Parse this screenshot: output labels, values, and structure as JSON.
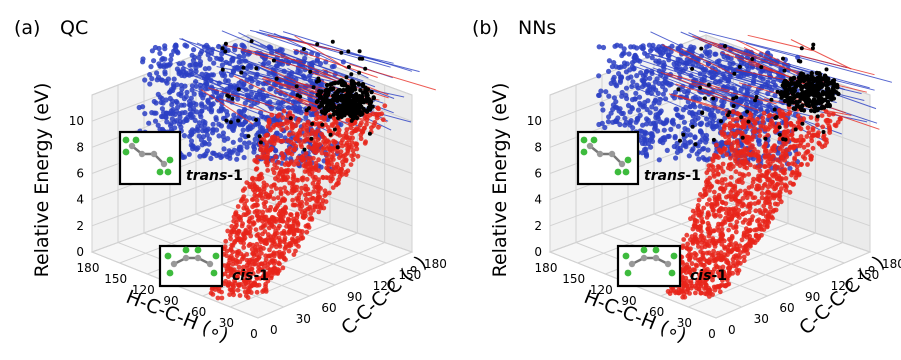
{
  "chart_data": [
    {
      "type": "scatter",
      "panel_label": "(a)",
      "title": "QC",
      "zlabel": "Relative Energy (eV)",
      "xlabel": "H-C-C-H (∘)",
      "ylabel": "C-C-C-C (∘)",
      "z_ticks": [
        "0",
        "2",
        "4",
        "6",
        "8",
        "10"
      ],
      "x_ticks": [
        "180",
        "150",
        "120",
        "90",
        "60",
        "30",
        "0"
      ],
      "y_ticks": [
        "0",
        "30",
        "60",
        "90",
        "120",
        "150",
        "180"
      ],
      "zlim": [
        0,
        12
      ],
      "xlim": [
        0,
        180
      ],
      "ylim": [
        0,
        180
      ],
      "series_colors": [
        "#2b3fc4",
        "#e8241a",
        "#000000"
      ],
      "annotations": [
        {
          "text": "trans-1",
          "italic": "trans",
          "suffix": "-1"
        },
        {
          "text": "cis-1",
          "italic": "cis",
          "suffix": "-1"
        }
      ]
    },
    {
      "type": "scatter",
      "panel_label": "(b)",
      "title": "NNs",
      "zlabel": "Relative Energy (eV)",
      "xlabel": "H-C-C-H (∘)",
      "ylabel": "C-C-C-C (∘)",
      "z_ticks": [
        "0",
        "2",
        "4",
        "6",
        "8",
        "10"
      ],
      "x_ticks": [
        "180",
        "150",
        "120",
        "90",
        "60",
        "30",
        "0"
      ],
      "y_ticks": [
        "0",
        "30",
        "60",
        "90",
        "120",
        "150",
        "180"
      ],
      "zlim": [
        0,
        12
      ],
      "xlim": [
        0,
        180
      ],
      "ylim": [
        0,
        180
      ],
      "series_colors": [
        "#2b3fc4",
        "#e8241a",
        "#000000"
      ],
      "annotations": [
        {
          "text": "trans-1",
          "italic": "trans",
          "suffix": "-1"
        },
        {
          "text": "cis-1",
          "italic": "cis",
          "suffix": "-1"
        }
      ]
    }
  ]
}
